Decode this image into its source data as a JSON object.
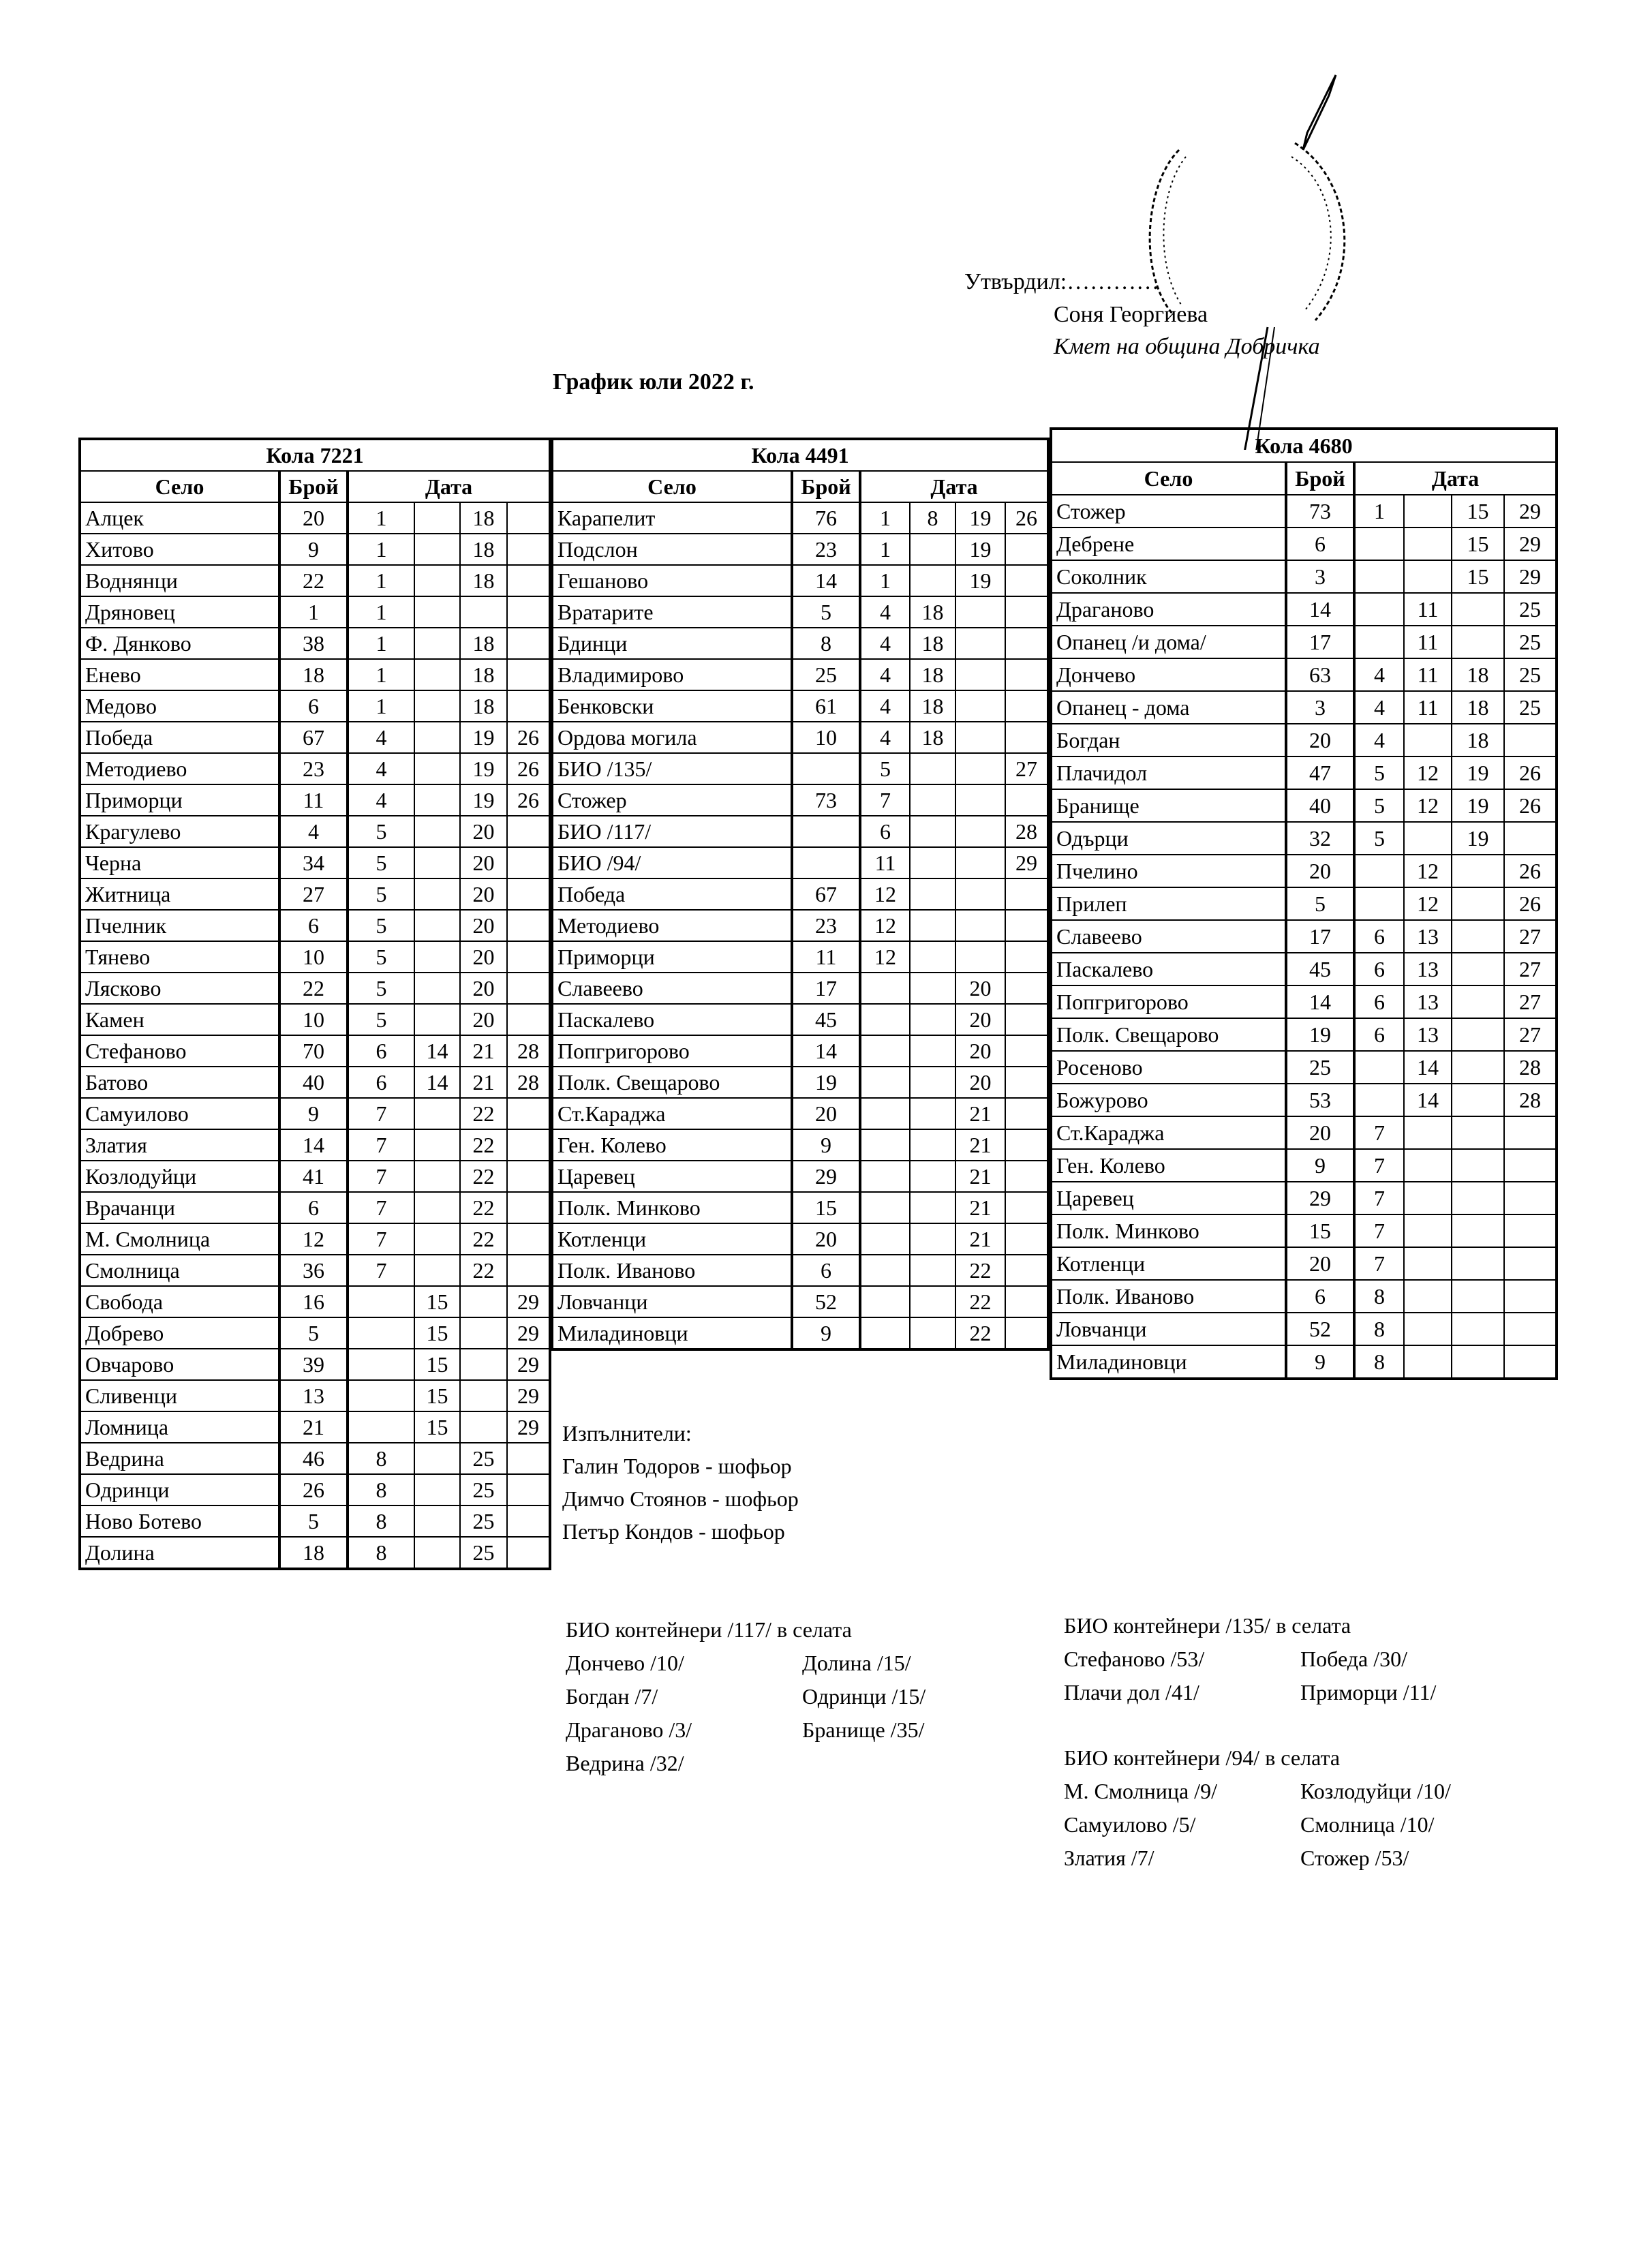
{
  "header": {
    "approved_label": "Утвърдил:…………",
    "mayor_name": "Соня Георгиева",
    "mayor_title": "Кмет  на община Добричка",
    "title": "График юли 2022 г."
  },
  "column_headers": {
    "village": "Село",
    "count": "Брой",
    "date": "Дата"
  },
  "tables": [
    {
      "title": "Кола 7221",
      "rows": [
        {
          "village": "Алцек",
          "count": "20",
          "dates": [
            "1",
            "",
            "18",
            ""
          ]
        },
        {
          "village": "Хитово",
          "count": "9",
          "dates": [
            "1",
            "",
            "18",
            ""
          ]
        },
        {
          "village": "Воднянци",
          "count": "22",
          "dates": [
            "1",
            "",
            "18",
            ""
          ]
        },
        {
          "village": "Дряновец",
          "count": "1",
          "dates": [
            "1",
            "",
            "",
            ""
          ]
        },
        {
          "village": "Ф. Дянково",
          "count": "38",
          "dates": [
            "1",
            "",
            "18",
            ""
          ]
        },
        {
          "village": "Енево",
          "count": "18",
          "dates": [
            "1",
            "",
            "18",
            ""
          ]
        },
        {
          "village": "Медово",
          "count": "6",
          "dates": [
            "1",
            "",
            "18",
            ""
          ]
        },
        {
          "village": "Победа",
          "count": "67",
          "dates": [
            "4",
            "",
            "19",
            "26"
          ]
        },
        {
          "village": "Методиево",
          "count": "23",
          "dates": [
            "4",
            "",
            "19",
            "26"
          ]
        },
        {
          "village": "Приморци",
          "count": "11",
          "dates": [
            "4",
            "",
            "19",
            "26"
          ]
        },
        {
          "village": "Крагулево",
          "count": "4",
          "dates": [
            "5",
            "",
            "20",
            ""
          ]
        },
        {
          "village": "Черна",
          "count": "34",
          "dates": [
            "5",
            "",
            "20",
            ""
          ]
        },
        {
          "village": "Житница",
          "count": "27",
          "dates": [
            "5",
            "",
            "20",
            ""
          ]
        },
        {
          "village": "Пчелник",
          "count": "6",
          "dates": [
            "5",
            "",
            "20",
            ""
          ]
        },
        {
          "village": "Тянево",
          "count": "10",
          "dates": [
            "5",
            "",
            "20",
            ""
          ]
        },
        {
          "village": "Лясково",
          "count": "22",
          "dates": [
            "5",
            "",
            "20",
            ""
          ]
        },
        {
          "village": "Камен",
          "count": "10",
          "dates": [
            "5",
            "",
            "20",
            ""
          ]
        },
        {
          "village": "Стефаново",
          "count": "70",
          "dates": [
            "6",
            "14",
            "21",
            "28"
          ]
        },
        {
          "village": "Батово",
          "count": "40",
          "dates": [
            "6",
            "14",
            "21",
            "28"
          ]
        },
        {
          "village": "Самуилово",
          "count": "9",
          "dates": [
            "7",
            "",
            "22",
            ""
          ]
        },
        {
          "village": "Златия",
          "count": "14",
          "dates": [
            "7",
            "",
            "22",
            ""
          ]
        },
        {
          "village": "Козлодуйци",
          "count": "41",
          "dates": [
            "7",
            "",
            "22",
            ""
          ]
        },
        {
          "village": "Врачанци",
          "count": "6",
          "dates": [
            "7",
            "",
            "22",
            ""
          ]
        },
        {
          "village": "М. Смолница",
          "count": "12",
          "dates": [
            "7",
            "",
            "22",
            ""
          ]
        },
        {
          "village": "Смолница",
          "count": "36",
          "dates": [
            "7",
            "",
            "22",
            ""
          ]
        },
        {
          "village": "Свобода",
          "count": "16",
          "dates": [
            "",
            "15",
            "",
            "29"
          ]
        },
        {
          "village": "Добрево",
          "count": "5",
          "dates": [
            "",
            "15",
            "",
            "29"
          ]
        },
        {
          "village": "Овчарово",
          "count": "39",
          "dates": [
            "",
            "15",
            "",
            "29"
          ]
        },
        {
          "village": "Сливенци",
          "count": "13",
          "dates": [
            "",
            "15",
            "",
            "29"
          ]
        },
        {
          "village": "Ломница",
          "count": "21",
          "dates": [
            "",
            "15",
            "",
            "29"
          ]
        },
        {
          "village": "Ведрина",
          "count": "46",
          "dates": [
            "8",
            "",
            "25",
            ""
          ]
        },
        {
          "village": "Одринци",
          "count": "26",
          "dates": [
            "8",
            "",
            "25",
            ""
          ]
        },
        {
          "village": "Ново Ботево",
          "count": "5",
          "dates": [
            "8",
            "",
            "25",
            ""
          ]
        },
        {
          "village": "Долина",
          "count": "18",
          "dates": [
            "8",
            "",
            "25",
            ""
          ]
        }
      ]
    },
    {
      "title": "Кола 4491",
      "rows": [
        {
          "village": "Карапелит",
          "count": "76",
          "dates": [
            "1",
            "8",
            "19",
            "26"
          ]
        },
        {
          "village": "Подслон",
          "count": "23",
          "dates": [
            "1",
            "",
            "19",
            ""
          ]
        },
        {
          "village": "Гешаново",
          "count": "14",
          "dates": [
            "1",
            "",
            "19",
            ""
          ]
        },
        {
          "village": "Вратарите",
          "count": "5",
          "dates": [
            "4",
            "18",
            "",
            ""
          ]
        },
        {
          "village": "Бдинци",
          "count": "8",
          "dates": [
            "4",
            "18",
            "",
            ""
          ]
        },
        {
          "village": "Владимирово",
          "count": "25",
          "dates": [
            "4",
            "18",
            "",
            ""
          ]
        },
        {
          "village": "Бенковски",
          "count": "61",
          "dates": [
            "4",
            "18",
            "",
            ""
          ]
        },
        {
          "village": "Ордова могила",
          "count": "10",
          "dates": [
            "4",
            "18",
            "",
            ""
          ]
        },
        {
          "village": "БИО /135/",
          "count": "",
          "dates": [
            "5",
            "",
            "",
            "27"
          ]
        },
        {
          "village": "Стожер",
          "count": "73",
          "dates": [
            "7",
            "",
            "",
            ""
          ]
        },
        {
          "village": "БИО /117/",
          "count": "",
          "dates": [
            "6",
            "",
            "",
            "28"
          ]
        },
        {
          "village": "БИО /94/",
          "count": "",
          "dates": [
            "11",
            "",
            "",
            "29"
          ]
        },
        {
          "village": "Победа",
          "count": "67",
          "dates": [
            "12",
            "",
            "",
            ""
          ]
        },
        {
          "village": "Методиево",
          "count": "23",
          "dates": [
            "12",
            "",
            "",
            ""
          ]
        },
        {
          "village": "Приморци",
          "count": "11",
          "dates": [
            "12",
            "",
            "",
            ""
          ]
        },
        {
          "village": "Славеево",
          "count": "17",
          "dates": [
            "",
            "",
            "20",
            ""
          ]
        },
        {
          "village": "Паскалево",
          "count": "45",
          "dates": [
            "",
            "",
            "20",
            ""
          ]
        },
        {
          "village": "Попгригорово",
          "count": "14",
          "dates": [
            "",
            "",
            "20",
            ""
          ]
        },
        {
          "village": "Полк. Свещарово",
          "count": "19",
          "dates": [
            "",
            "",
            "20",
            ""
          ]
        },
        {
          "village": "Ст.Караджа",
          "count": "20",
          "dates": [
            "",
            "",
            "21",
            ""
          ]
        },
        {
          "village": "Ген. Колево",
          "count": "9",
          "dates": [
            "",
            "",
            "21",
            ""
          ]
        },
        {
          "village": "Царевец",
          "count": "29",
          "dates": [
            "",
            "",
            "21",
            ""
          ]
        },
        {
          "village": "Полк. Минково",
          "count": "15",
          "dates": [
            "",
            "",
            "21",
            ""
          ]
        },
        {
          "village": "Котленци",
          "count": "20",
          "dates": [
            "",
            "",
            "21",
            ""
          ]
        },
        {
          "village": "Полк. Иваново",
          "count": "6",
          "dates": [
            "",
            "",
            "22",
            ""
          ]
        },
        {
          "village": "Ловчанци",
          "count": "52",
          "dates": [
            "",
            "",
            "22",
            ""
          ]
        },
        {
          "village": "Миладиновци",
          "count": "9",
          "dates": [
            "",
            "",
            "22",
            ""
          ]
        }
      ]
    },
    {
      "title": "Кола 4680",
      "rows": [
        {
          "village": "Стожер",
          "count": "73",
          "dates": [
            "1",
            "",
            "15",
            "29"
          ]
        },
        {
          "village": "Дебрене",
          "count": "6",
          "dates": [
            "",
            "",
            "15",
            "29"
          ]
        },
        {
          "village": "Соколник",
          "count": "3",
          "dates": [
            "",
            "",
            "15",
            "29"
          ]
        },
        {
          "village": "Драганово",
          "count": "14",
          "dates": [
            "",
            "11",
            "",
            "25"
          ]
        },
        {
          "village": "Опанец /и дома/",
          "count": "17",
          "dates": [
            "",
            "11",
            "",
            "25"
          ]
        },
        {
          "village": "Дончево",
          "count": "63",
          "dates": [
            "4",
            "11",
            "18",
            "25"
          ]
        },
        {
          "village": "Опанец - дома",
          "count": "3",
          "dates": [
            "4",
            "11",
            "18",
            "25"
          ]
        },
        {
          "village": "Богдан",
          "count": "20",
          "dates": [
            "4",
            "",
            "18",
            ""
          ]
        },
        {
          "village": "Плачидол",
          "count": "47",
          "dates": [
            "5",
            "12",
            "19",
            "26"
          ]
        },
        {
          "village": "Бранище",
          "count": "40",
          "dates": [
            "5",
            "12",
            "19",
            "26"
          ]
        },
        {
          "village": "Одърци",
          "count": "32",
          "dates": [
            "5",
            "",
            "19",
            ""
          ]
        },
        {
          "village": "Пчелино",
          "count": "20",
          "dates": [
            "",
            "12",
            "",
            "26"
          ]
        },
        {
          "village": "Прилеп",
          "count": "5",
          "dates": [
            "",
            "12",
            "",
            "26"
          ]
        },
        {
          "village": "Славеево",
          "count": "17",
          "dates": [
            "6",
            "13",
            "",
            "27"
          ]
        },
        {
          "village": "Паскалево",
          "count": "45",
          "dates": [
            "6",
            "13",
            "",
            "27"
          ]
        },
        {
          "village": "Попгригорово",
          "count": "14",
          "dates": [
            "6",
            "13",
            "",
            "27"
          ]
        },
        {
          "village": "Полк. Свещарово",
          "count": "19",
          "dates": [
            "6",
            "13",
            "",
            "27"
          ]
        },
        {
          "village": "Росеново",
          "count": "25",
          "dates": [
            "",
            "14",
            "",
            "28"
          ]
        },
        {
          "village": "Божурово",
          "count": "53",
          "dates": [
            "",
            "14",
            "",
            "28"
          ]
        },
        {
          "village": "Ст.Караджа",
          "count": "20",
          "dates": [
            "7",
            "",
            "",
            ""
          ]
        },
        {
          "village": "Ген. Колево",
          "count": "9",
          "dates": [
            "7",
            "",
            "",
            ""
          ]
        },
        {
          "village": "Царевец",
          "count": "29",
          "dates": [
            "7",
            "",
            "",
            ""
          ]
        },
        {
          "village": "Полк. Минково",
          "count": "15",
          "dates": [
            "7",
            "",
            "",
            ""
          ]
        },
        {
          "village": "Котленци",
          "count": "20",
          "dates": [
            "7",
            "",
            "",
            ""
          ]
        },
        {
          "village": "Полк. Иваново",
          "count": "6",
          "dates": [
            "8",
            "",
            "",
            ""
          ]
        },
        {
          "village": "Ловчанци",
          "count": "52",
          "dates": [
            "8",
            "",
            "",
            ""
          ]
        },
        {
          "village": "Миладиновци",
          "count": "9",
          "dates": [
            "8",
            "",
            "",
            ""
          ]
        }
      ]
    }
  ],
  "executors": {
    "label": "Изпълнители:",
    "items": [
      "Галин Тодоров - шофьор",
      "Димчо Стоянов - шофьор",
      "Петър Кондов - шофьор"
    ]
  },
  "bio_groups": [
    {
      "title": "БИО контейнери /117/ в селата",
      "col1": [
        "Дончево /10/",
        "Богдан /7/",
        "Драганово /3/",
        "Ведрина /32/"
      ],
      "col2": [
        "Долина /15/",
        "Одринци /15/",
        "Бранище /35/"
      ]
    },
    {
      "title": "БИО контейнери /135/ в селата",
      "col1": [
        "Стефаново /53/",
        "Плачи дол /41/"
      ],
      "col2": [
        "Победа /30/",
        "Приморци /11/"
      ]
    },
    {
      "title": "БИО контейнери /94/ в селата",
      "col1": [
        "М. Смолница /9/",
        "Самуилово /5/",
        "Златия /7/"
      ],
      "col2": [
        "Козлодуйци /10/",
        "Смолница /10/",
        "Стожер /53/"
      ]
    }
  ]
}
